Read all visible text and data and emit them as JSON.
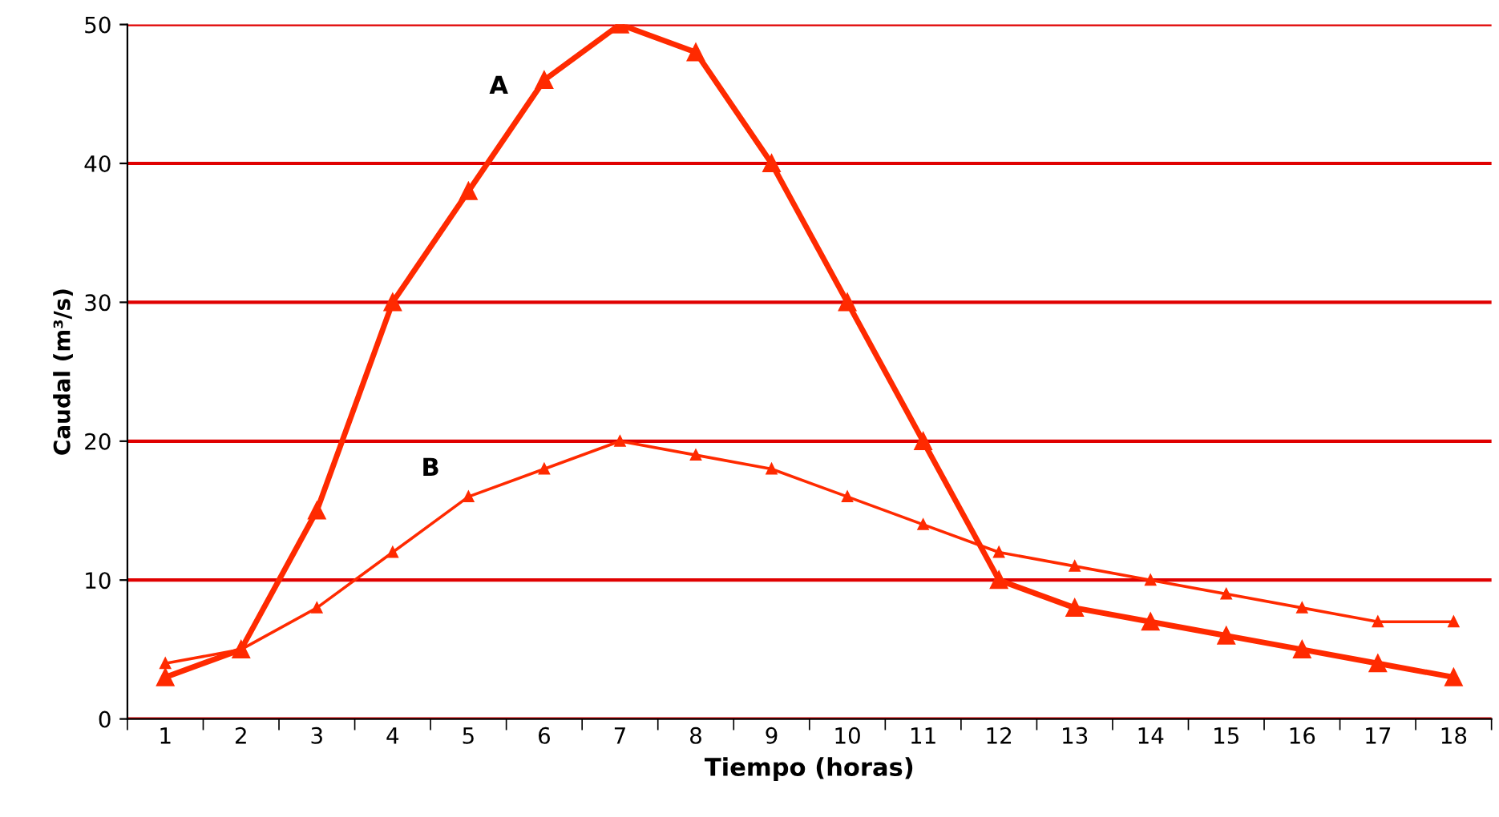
{
  "chart_data": {
    "type": "line",
    "xlabel": "Tiempo (horas)",
    "ylabel": "Caudal (m³/s)",
    "categories": [
      "1",
      "2",
      "3",
      "4",
      "5",
      "6",
      "7",
      "8",
      "9",
      "10",
      "11",
      "12",
      "13",
      "14",
      "15",
      "16",
      "17",
      "18"
    ],
    "series": [
      {
        "name": "A",
        "color": "#ff2a00",
        "values": [
          3,
          5,
          15,
          30,
          38,
          46,
          50,
          48,
          40,
          30,
          20,
          10,
          8,
          7,
          6,
          5,
          4,
          3
        ]
      },
      {
        "name": "B",
        "color": "#ff2a00",
        "values": [
          4,
          5,
          8,
          12,
          16,
          18,
          20,
          19,
          18,
          16,
          14,
          12,
          11,
          10,
          9,
          8,
          7,
          7
        ]
      }
    ],
    "ylim": [
      0,
      50
    ],
    "yticks": [
      0,
      10,
      20,
      30,
      40,
      50
    ],
    "grid": "y",
    "marker": "triangle",
    "line_style": "solid"
  }
}
